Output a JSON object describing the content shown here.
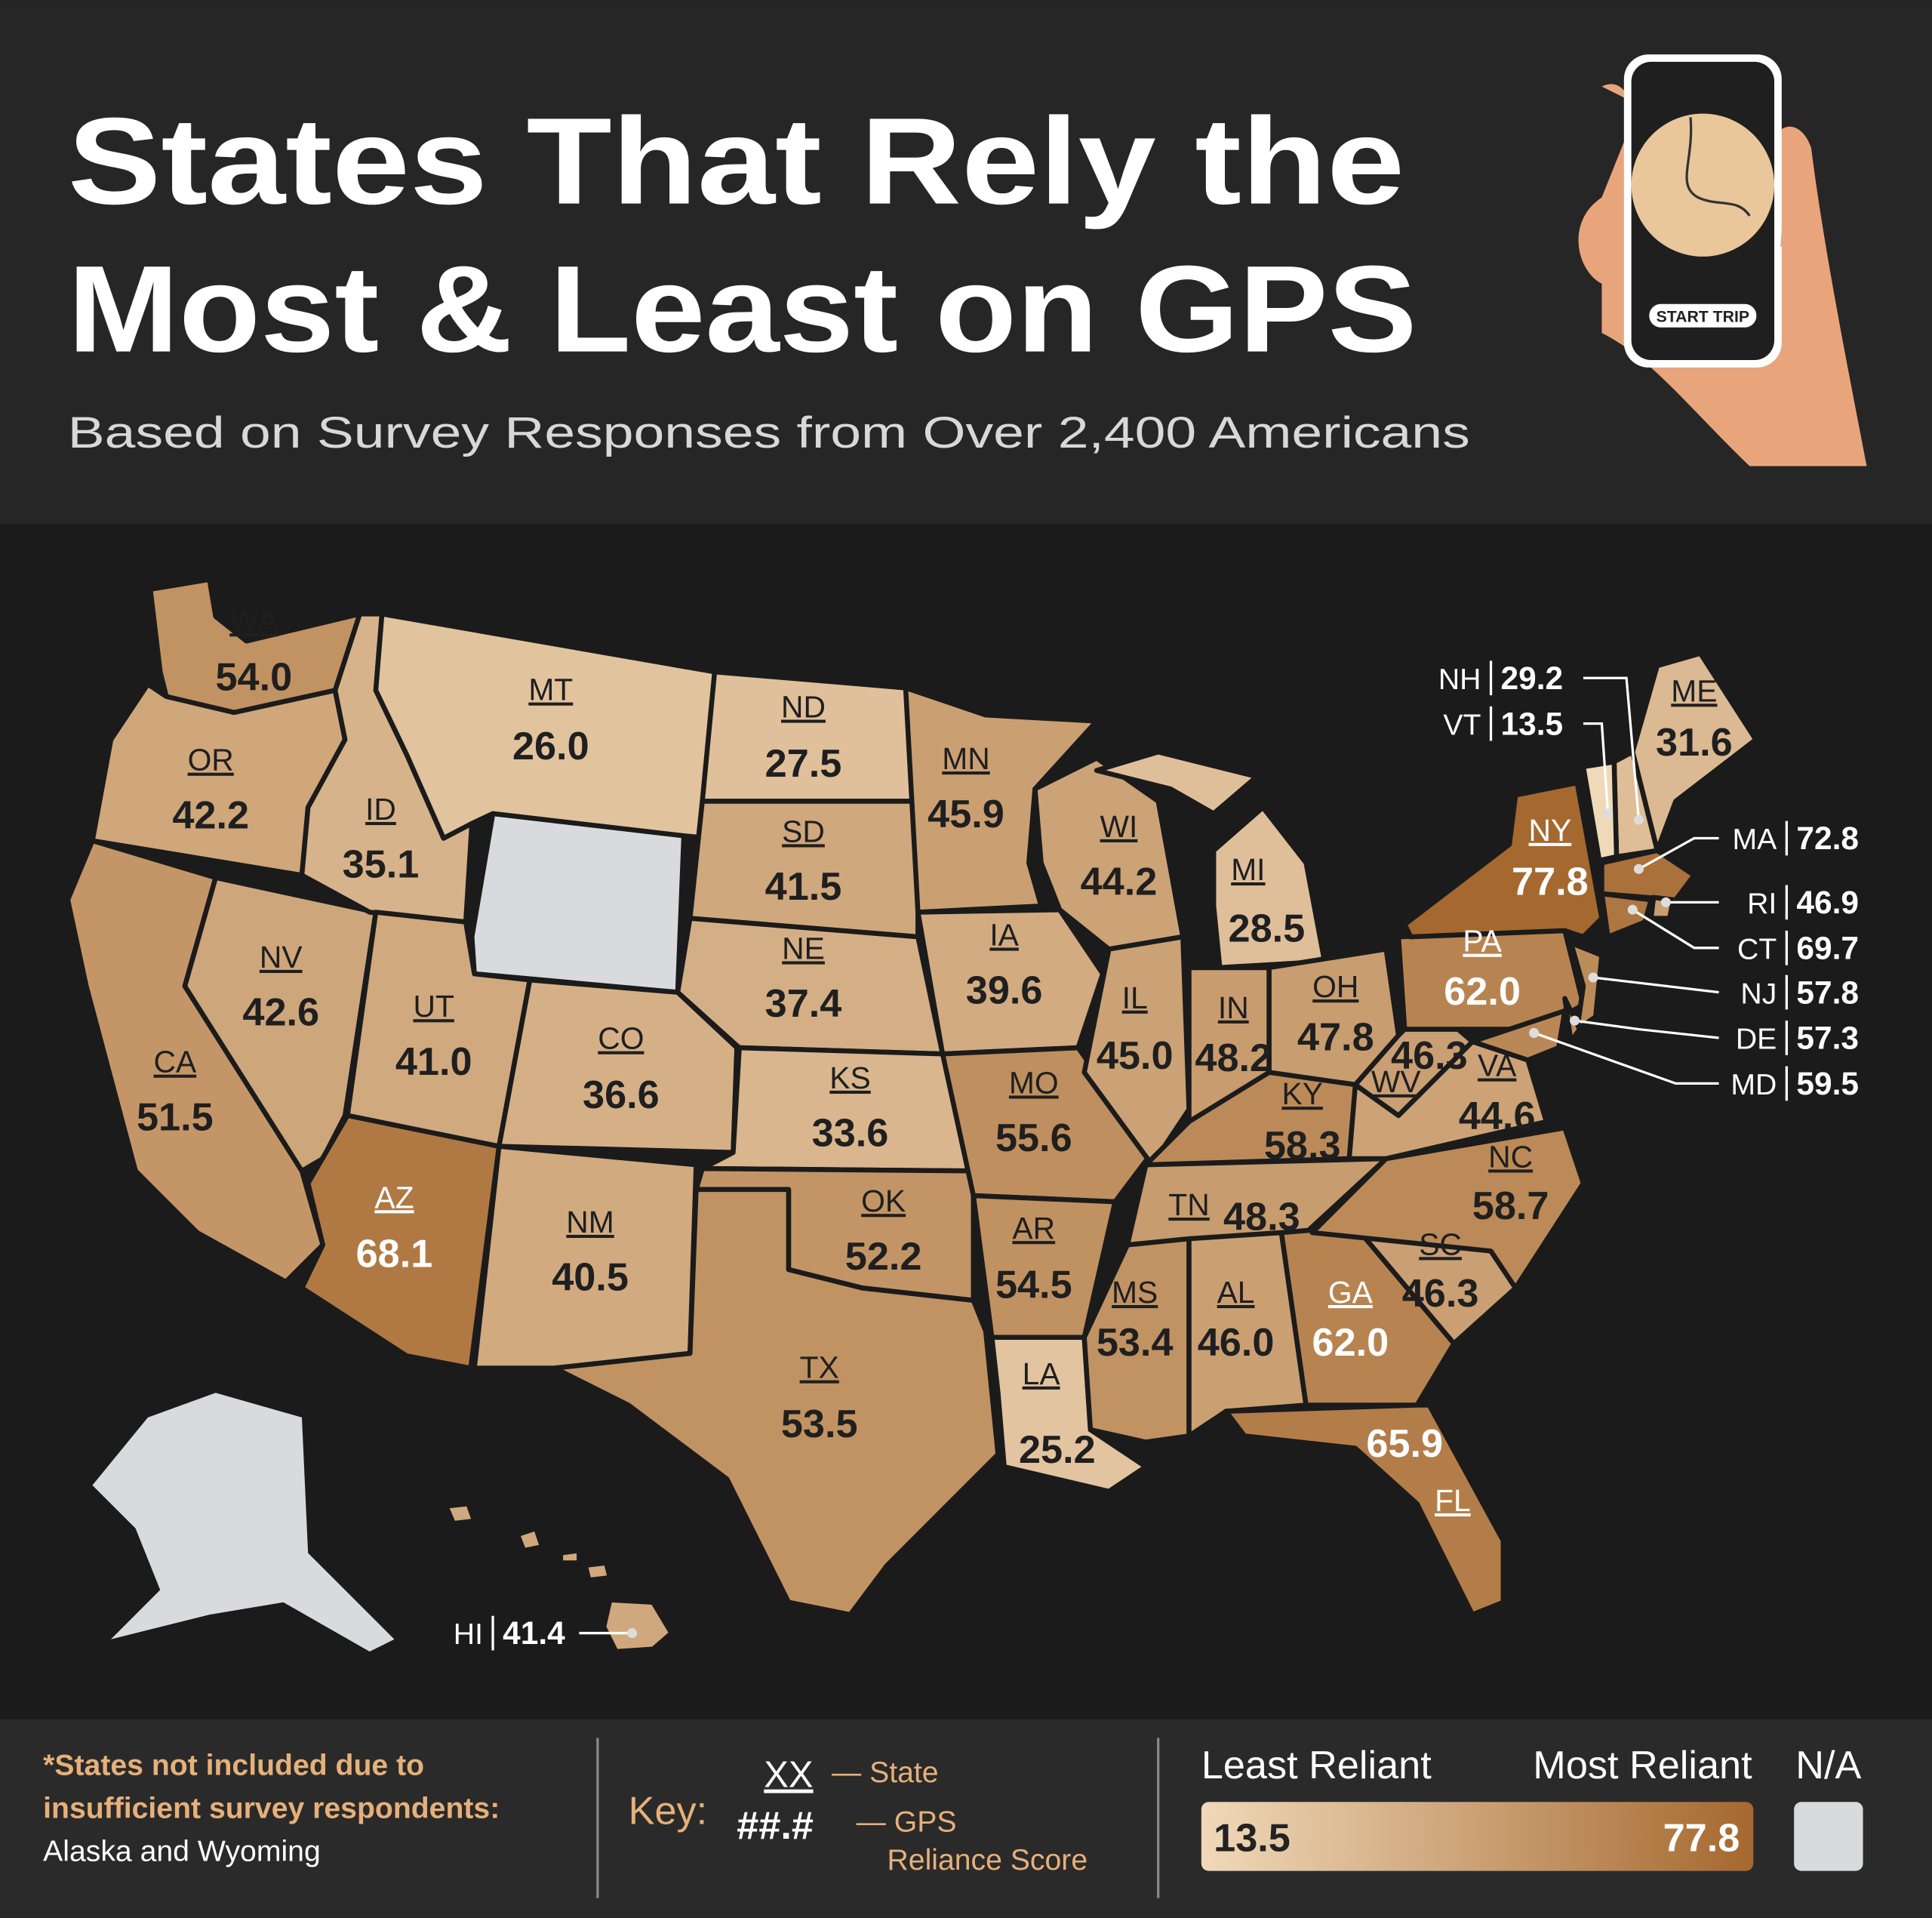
{
  "header": {
    "title_lines": [
      "States That Rely the",
      "Most & Least on GPS"
    ],
    "subtitle": "Based on Survey Responses from Over 2,400 Americans",
    "phone_button": "START TRIP"
  },
  "map": {
    "states": [
      {
        "abbr": "WA",
        "value": 54.0,
        "value_label": "54.0"
      },
      {
        "abbr": "OR",
        "value": 42.2
      },
      {
        "abbr": "CA",
        "value": 51.5
      },
      {
        "abbr": "NV",
        "value": 42.6
      },
      {
        "abbr": "ID",
        "value": 35.1
      },
      {
        "abbr": "MT",
        "value": 26.0,
        "value_label": "26.0"
      },
      {
        "abbr": "UT",
        "value": 41.0,
        "value_label": "41.0"
      },
      {
        "abbr": "AZ",
        "value": 68.1
      },
      {
        "abbr": "NM",
        "value": 40.5
      },
      {
        "abbr": "CO",
        "value": 36.6
      },
      {
        "abbr": "ND",
        "value": 27.5
      },
      {
        "abbr": "SD",
        "value": 41.5
      },
      {
        "abbr": "NE",
        "value": 37.4
      },
      {
        "abbr": "KS",
        "value": 33.6
      },
      {
        "abbr": "OK",
        "value": 52.2
      },
      {
        "abbr": "TX",
        "value": 53.5
      },
      {
        "abbr": "MN",
        "value": 45.9
      },
      {
        "abbr": "IA",
        "value": 39.6
      },
      {
        "abbr": "MO",
        "value": 55.6
      },
      {
        "abbr": "AR",
        "value": 54.5
      },
      {
        "abbr": "LA",
        "value": 25.2
      },
      {
        "abbr": "WI",
        "value": 44.2
      },
      {
        "abbr": "IL",
        "value": 45.0,
        "value_label": "45.0"
      },
      {
        "abbr": "MI",
        "value": 28.5
      },
      {
        "abbr": "IN",
        "value": 48.2
      },
      {
        "abbr": "OH",
        "value": 47.8
      },
      {
        "abbr": "KY",
        "value": 58.3
      },
      {
        "abbr": "TN",
        "value": 48.3
      },
      {
        "abbr": "MS",
        "value": 53.4
      },
      {
        "abbr": "AL",
        "value": 46.0,
        "value_label": "46.0"
      },
      {
        "abbr": "GA",
        "value": 62.0,
        "value_label": "62.0"
      },
      {
        "abbr": "FL",
        "value": 65.9
      },
      {
        "abbr": "SC",
        "value": 46.3
      },
      {
        "abbr": "NC",
        "value": 58.7
      },
      {
        "abbr": "VA",
        "value": 44.6
      },
      {
        "abbr": "WV",
        "value": 46.3
      },
      {
        "abbr": "PA",
        "value": 62.0,
        "value_label": "62.0"
      },
      {
        "abbr": "NY",
        "value": 77.8
      },
      {
        "abbr": "ME",
        "value": 31.6
      },
      {
        "abbr": "NH",
        "value": 29.2
      },
      {
        "abbr": "VT",
        "value": 13.5
      },
      {
        "abbr": "MA",
        "value": 72.8
      },
      {
        "abbr": "RI",
        "value": 46.9
      },
      {
        "abbr": "CT",
        "value": 69.7
      },
      {
        "abbr": "NJ",
        "value": 57.8
      },
      {
        "abbr": "DE",
        "value": 57.3
      },
      {
        "abbr": "MD",
        "value": 59.5
      },
      {
        "abbr": "HI",
        "value": 41.4
      }
    ]
  },
  "footer": {
    "note_lines": [
      "*States not included due to",
      "insufficient survey respondents:"
    ],
    "note_states": "Alaska and Wyoming",
    "key": {
      "label": "Key:",
      "state_code": "XX",
      "state_desc": "— State",
      "score_code": "##.#",
      "score_desc_lines": [
        "— GPS",
        "Reliance Score"
      ]
    },
    "legend": {
      "low_label": "Least Reliant",
      "high_label": "Most Reliant",
      "na_label": "N/A",
      "min": 13.5,
      "max": 77.8
    }
  }
}
